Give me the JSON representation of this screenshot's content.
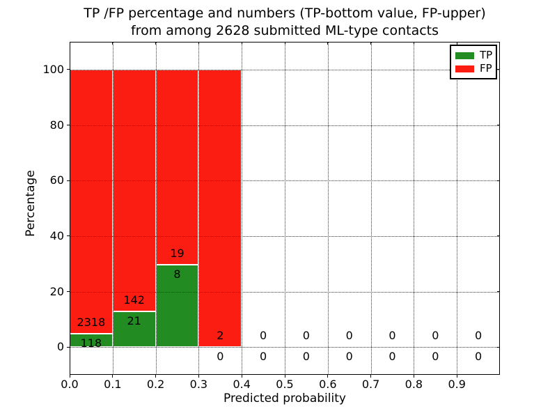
{
  "figure": {
    "background": "#ffffff"
  },
  "chart_data": {
    "type": "bar",
    "stacked": true,
    "title_lines": [
      "TP /FP percentage and numbers (TP-bottom value, FP-upper)",
      "from among 2628 submitted ML-type contacts"
    ],
    "xlabel": "Predicted probability",
    "ylabel": "Percentage",
    "xlim": [
      0.0,
      1.0
    ],
    "ylim": [
      -10,
      110
    ],
    "xticks": [
      {
        "v": 0.0,
        "label": "0.0"
      },
      {
        "v": 0.1,
        "label": "0.1"
      },
      {
        "v": 0.2,
        "label": "0.2"
      },
      {
        "v": 0.3,
        "label": "0.3"
      },
      {
        "v": 0.4,
        "label": "0.4"
      },
      {
        "v": 0.5,
        "label": "0.5"
      },
      {
        "v": 0.6,
        "label": "0.6"
      },
      {
        "v": 0.7,
        "label": "0.7"
      },
      {
        "v": 0.8,
        "label": "0.8"
      },
      {
        "v": 0.9,
        "label": "0.9"
      }
    ],
    "yticks": [
      {
        "v": 0,
        "label": "0"
      },
      {
        "v": 20,
        "label": "20"
      },
      {
        "v": 40,
        "label": "40"
      },
      {
        "v": 60,
        "label": "60"
      },
      {
        "v": 80,
        "label": "80"
      },
      {
        "v": 100,
        "label": "100"
      }
    ],
    "grid": true,
    "grid_style": "dotted",
    "colors": {
      "TP": "#228B22",
      "FP": "#FB1D12",
      "bar_edge": "#FFFFFF",
      "text": "#000000"
    },
    "legend": {
      "position": "upper-right",
      "entries": [
        {
          "label": "TP",
          "color": "#228B22"
        },
        {
          "label": "FP",
          "color": "#FB1D12"
        }
      ]
    },
    "bins": [
      {
        "x0": 0.0,
        "x1": 0.1,
        "tp": 118,
        "fp": 2318,
        "tp_pct": 4.8,
        "total_pct": 100
      },
      {
        "x0": 0.1,
        "x1": 0.2,
        "tp": 21,
        "fp": 142,
        "tp_pct": 12.9,
        "total_pct": 100
      },
      {
        "x0": 0.2,
        "x1": 0.3,
        "tp": 8,
        "fp": 19,
        "tp_pct": 29.6,
        "total_pct": 100
      },
      {
        "x0": 0.3,
        "x1": 0.4,
        "tp": 0,
        "fp": 2,
        "tp_pct": 0,
        "total_pct": 100
      },
      {
        "x0": 0.4,
        "x1": 0.5,
        "tp": 0,
        "fp": 0,
        "tp_pct": 0,
        "total_pct": 0
      },
      {
        "x0": 0.5,
        "x1": 0.6,
        "tp": 0,
        "fp": 0,
        "tp_pct": 0,
        "total_pct": 0
      },
      {
        "x0": 0.6,
        "x1": 0.7,
        "tp": 0,
        "fp": 0,
        "tp_pct": 0,
        "total_pct": 0
      },
      {
        "x0": 0.7,
        "x1": 0.8,
        "tp": 0,
        "fp": 0,
        "tp_pct": 0,
        "total_pct": 0
      },
      {
        "x0": 0.8,
        "x1": 0.9,
        "tp": 0,
        "fp": 0,
        "tp_pct": 0,
        "total_pct": 0
      },
      {
        "x0": 0.9,
        "x1": 1.0,
        "tp": 0,
        "fp": 0,
        "tp_pct": 0,
        "total_pct": 0
      }
    ]
  }
}
